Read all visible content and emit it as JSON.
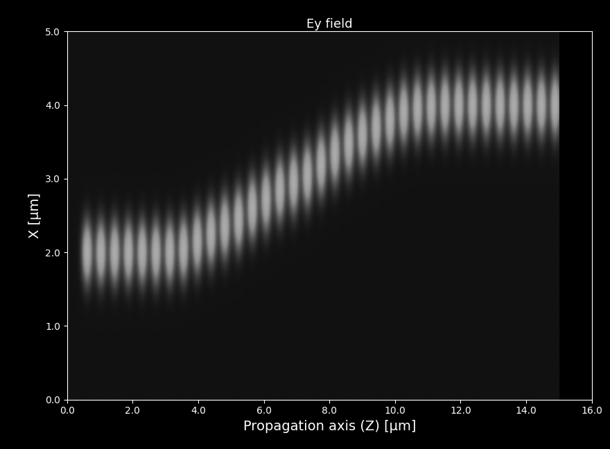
{
  "chart_data": {
    "type": "field_map",
    "title": "Ey field",
    "x_label": "Propagation axis (Z) [µm]",
    "y_label": "X [µm]",
    "xlim": [
      0,
      16
    ],
    "ylim": [
      0,
      5
    ],
    "xticks": [
      {
        "value": 0,
        "label": "0.0"
      },
      {
        "value": 2,
        "label": "2.0"
      },
      {
        "value": 4,
        "label": "4.0"
      },
      {
        "value": 6,
        "label": "6.0"
      },
      {
        "value": 8,
        "label": "8.0"
      },
      {
        "value": 10,
        "label": "10.0"
      },
      {
        "value": 12,
        "label": "12.0"
      },
      {
        "value": 14,
        "label": "14.0"
      },
      {
        "value": 16,
        "label": "16.0"
      }
    ],
    "yticks": [
      {
        "value": 0,
        "label": "0.0"
      },
      {
        "value": 1,
        "label": "1.0"
      },
      {
        "value": 2,
        "label": "2.0"
      },
      {
        "value": 3,
        "label": "3.0"
      },
      {
        "value": 4,
        "label": "4.0"
      },
      {
        "value": 5,
        "label": "5.0"
      }
    ],
    "field_z_range": [
      0,
      15
    ],
    "field_x_range": [
      0,
      5
    ],
    "spot_z": [
      0.6,
      1.02,
      1.44,
      1.86,
      2.28,
      2.7,
      3.12,
      3.54,
      3.96,
      4.38,
      4.8,
      5.22,
      5.64,
      6.06,
      6.48,
      6.9,
      7.32,
      7.74,
      8.16,
      8.58,
      9.0,
      9.42,
      9.84,
      10.26,
      10.68,
      11.1,
      11.52,
      11.94,
      12.36,
      12.78,
      13.2,
      13.62,
      14.04,
      14.46,
      14.88
    ],
    "spot_x": [
      2.0,
      2.0,
      2.0,
      2.0,
      2.0,
      2.0,
      2.01,
      2.05,
      2.15,
      2.25,
      2.35,
      2.45,
      2.6,
      2.72,
      2.85,
      2.95,
      3.05,
      3.2,
      3.35,
      3.48,
      3.6,
      3.7,
      3.8,
      3.9,
      3.95,
      3.98,
      4.0,
      4.0,
      4.0,
      4.0,
      4.0,
      4.0,
      4.0,
      4.0,
      4.0
    ],
    "grid": false
  }
}
